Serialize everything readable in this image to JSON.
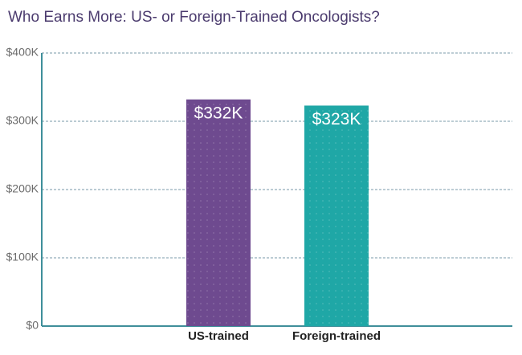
{
  "chart_data": {
    "type": "bar",
    "title": "Who Earns More: US- or Foreign-Trained Oncologists?",
    "categories": [
      "US-trained",
      "Foreign-trained"
    ],
    "values": [
      332000,
      323000
    ],
    "value_labels": [
      "$332K",
      "$323K"
    ],
    "colors": [
      "#6e4a8f",
      "#1fa7a6"
    ],
    "ylim": [
      0,
      400000
    ],
    "yticks": [
      {
        "value": 0,
        "label": "$0"
      },
      {
        "value": 100000,
        "label": "$100K"
      },
      {
        "value": 200000,
        "label": "$200K"
      },
      {
        "value": 300000,
        "label": "$300K"
      },
      {
        "value": 400000,
        "label": "$400K"
      }
    ],
    "grid": true
  }
}
